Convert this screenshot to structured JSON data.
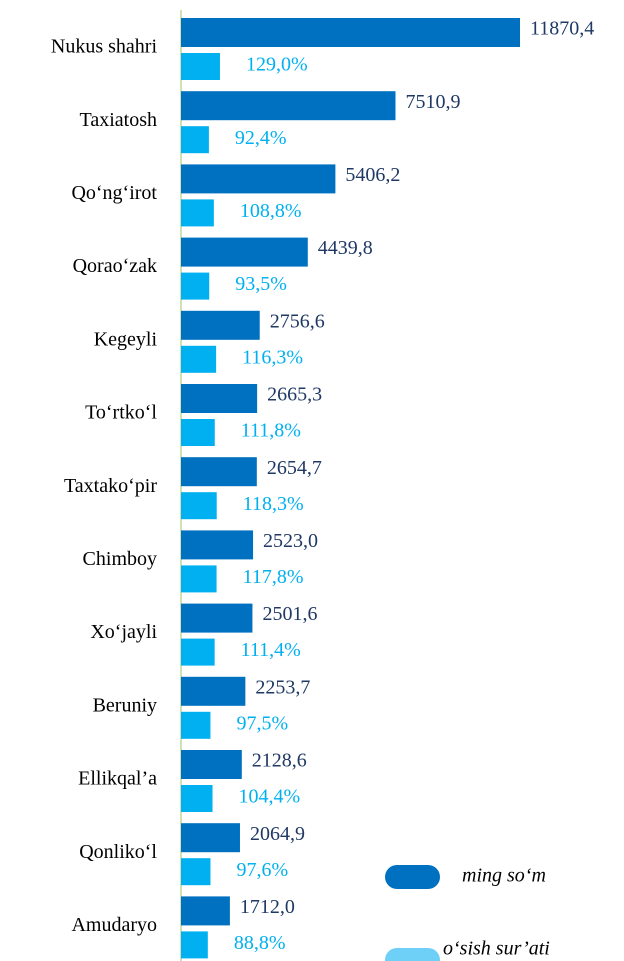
{
  "chart_data": {
    "type": "bar",
    "orientation": "horizontal",
    "categories": [
      "Nukus shahri",
      "Taxiatosh",
      "Qo‘ng‘irot",
      "Qorao‘zak",
      "Kegeyli",
      "To‘rtko‘l",
      "Taxtako‘pir",
      "Chimboy",
      "Xo‘jayli",
      "Beruniy",
      "Ellikqal’a",
      "Qonliko‘l",
      "Amudaryo"
    ],
    "series": [
      {
        "name": "ming so‘m",
        "color": "#0070c0",
        "values": [
          11870.4,
          7510.9,
          5406.2,
          4439.8,
          2756.6,
          2665.3,
          2654.7,
          2523.0,
          2501.6,
          2253.7,
          2128.6,
          2064.9,
          1712.0
        ],
        "value_labels": [
          "11870,4",
          "7510,9",
          "5406,2",
          "4439,8",
          "2756,6",
          "2665,3",
          "2654,7",
          "2523,0",
          "2501,6",
          "2253,7",
          "2128,6",
          "2064,9",
          "1712,0"
        ]
      },
      {
        "name": "o‘sish sur’ati",
        "color": "#00b0f0",
        "values": [
          129.0,
          92.4,
          108.8,
          93.5,
          116.3,
          111.8,
          118.3,
          117.8,
          111.4,
          97.5,
          104.4,
          97.6,
          88.8
        ],
        "value_labels": [
          "129,0%",
          "92,4%",
          "108,8%",
          "93,5%",
          "116,3%",
          "111,8%",
          "118,3%",
          "117,8%",
          "111,4%",
          "97,5%",
          "104,4%",
          "97,6%",
          "88,8%"
        ]
      }
    ],
    "legend": "bottom-right"
  }
}
